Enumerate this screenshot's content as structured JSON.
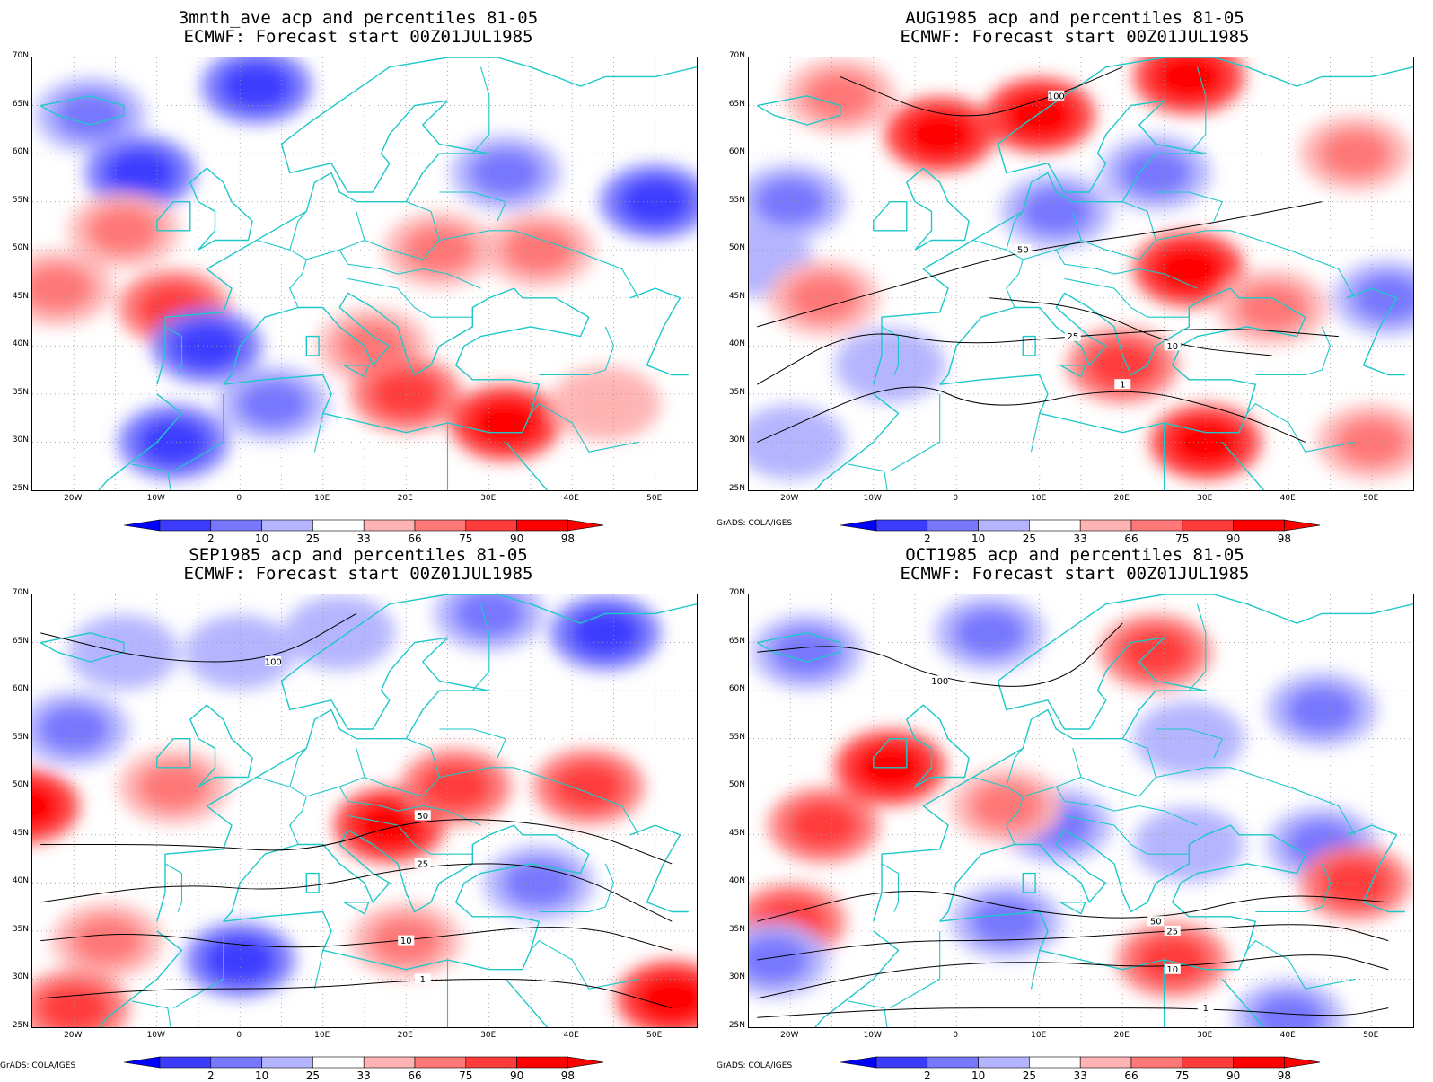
{
  "panels": [
    {
      "title_line1": "3mnth_ave acp and percentiles 81-05",
      "title_line2": "ECMWF: Forecast start 00Z01JUL1985",
      "credit": "",
      "blobs": [
        {
          "lon": -18,
          "lat": 64,
          "cls": 2
        },
        {
          "lon": 2,
          "lat": 67,
          "cls": 1
        },
        {
          "lon": -12,
          "lat": 58,
          "cls": 1
        },
        {
          "lon": 32,
          "lat": 58,
          "cls": 2
        },
        {
          "lon": -14,
          "lat": 52,
          "cls": 6
        },
        {
          "lon": -22,
          "lat": 46,
          "cls": 6
        },
        {
          "lon": -8,
          "lat": 44,
          "cls": 7
        },
        {
          "lon": 24,
          "lat": 50,
          "cls": 6
        },
        {
          "lon": 36,
          "lat": 50,
          "cls": 6
        },
        {
          "lon": -4,
          "lat": 40,
          "cls": 1
        },
        {
          "lon": 4,
          "lat": 34,
          "cls": 2
        },
        {
          "lon": 16,
          "lat": 40,
          "cls": 6
        },
        {
          "lon": 20,
          "lat": 35,
          "cls": 7
        },
        {
          "lon": 32,
          "lat": 32,
          "cls": 8
        },
        {
          "lon": 50,
          "lat": 55,
          "cls": 1
        },
        {
          "lon": -8,
          "lat": 30,
          "cls": 1
        },
        {
          "lon": 44,
          "lat": 34,
          "cls": 5
        }
      ],
      "contours": [],
      "tick_x": [
        "20W",
        "10W",
        "0",
        "10E",
        "20E",
        "30E",
        "40E",
        "50E"
      ],
      "tick_y": [
        "70N",
        "65N",
        "60N",
        "55N",
        "50N",
        "45N",
        "40N",
        "35N",
        "30N",
        "25N"
      ]
    },
    {
      "title_line1": "AUG1985 acp and percentiles 81-05",
      "title_line2": "ECMWF: Forecast start 00Z01JUL1985",
      "credit": "GrADS: COLA/IGES",
      "blobs": [
        {
          "lon": -14,
          "lat": 66,
          "cls": 6
        },
        {
          "lon": -2,
          "lat": 62,
          "cls": 8
        },
        {
          "lon": 10,
          "lat": 64,
          "cls": 8
        },
        {
          "lon": 28,
          "lat": 68,
          "cls": 8
        },
        {
          "lon": 24,
          "lat": 58,
          "cls": 2
        },
        {
          "lon": 12,
          "lat": 54,
          "cls": 2
        },
        {
          "lon": -20,
          "lat": 55,
          "cls": 2
        },
        {
          "lon": -24,
          "lat": 49,
          "cls": 3
        },
        {
          "lon": -8,
          "lat": 38,
          "cls": 3
        },
        {
          "lon": 28,
          "lat": 48,
          "cls": 8
        },
        {
          "lon": 20,
          "lat": 38,
          "cls": 7
        },
        {
          "lon": 30,
          "lat": 30,
          "cls": 8
        },
        {
          "lon": 38,
          "lat": 44,
          "cls": 6
        },
        {
          "lon": 48,
          "lat": 60,
          "cls": 6
        },
        {
          "lon": -20,
          "lat": 30,
          "cls": 3
        },
        {
          "lon": 50,
          "lat": 30,
          "cls": 6
        },
        {
          "lon": -16,
          "lat": 45,
          "cls": 6
        },
        {
          "lon": 52,
          "lat": 45,
          "cls": 2
        }
      ],
      "contours": [
        {
          "label": "100",
          "pts": [
            [
              -14,
              68
            ],
            [
              0,
              63
            ],
            [
              12,
              66
            ],
            [
              20,
              69
            ]
          ]
        },
        {
          "label": "50",
          "pts": [
            [
              -24,
              42
            ],
            [
              -8,
              46
            ],
            [
              8,
              50
            ],
            [
              26,
              52
            ],
            [
              44,
              55
            ]
          ]
        },
        {
          "label": "25",
          "pts": [
            [
              -24,
              36
            ],
            [
              -12,
              42
            ],
            [
              0,
              40
            ],
            [
              14,
              41
            ],
            [
              32,
              42
            ],
            [
              46,
              41
            ]
          ]
        },
        {
          "label": "10",
          "pts": [
            [
              4,
              45
            ],
            [
              16,
              44
            ],
            [
              26,
              40
            ],
            [
              38,
              39
            ]
          ]
        },
        {
          "label": "1",
          "pts": [
            [
              -24,
              30
            ],
            [
              -6,
              37
            ],
            [
              4,
              33
            ],
            [
              20,
              36
            ],
            [
              34,
              33
            ],
            [
              42,
              30
            ]
          ]
        }
      ],
      "tick_x": [
        "20W",
        "10W",
        "0",
        "10E",
        "20E",
        "30E",
        "40E",
        "50E"
      ],
      "tick_y": [
        "70N",
        "65N",
        "60N",
        "55N",
        "50N",
        "45N",
        "40N",
        "35N",
        "30N",
        "25N"
      ]
    },
    {
      "title_line1": "SEP1985 acp and percentiles 81-05",
      "title_line2": "ECMWF: Forecast start 00Z01JUL1985",
      "credit": "GrADS: COLA/IGES",
      "blobs": [
        {
          "lon": -14,
          "lat": 64,
          "cls": 3
        },
        {
          "lon": 0,
          "lat": 64,
          "cls": 3
        },
        {
          "lon": 12,
          "lat": 66,
          "cls": 3
        },
        {
          "lon": 30,
          "lat": 68,
          "cls": 2
        },
        {
          "lon": 44,
          "lat": 66,
          "cls": 1
        },
        {
          "lon": -20,
          "lat": 56,
          "cls": 2
        },
        {
          "lon": -26,
          "lat": 48,
          "cls": 8
        },
        {
          "lon": 18,
          "lat": 46,
          "cls": 8
        },
        {
          "lon": 26,
          "lat": 50,
          "cls": 7
        },
        {
          "lon": 42,
          "lat": 50,
          "cls": 7
        },
        {
          "lon": -8,
          "lat": 50,
          "cls": 6
        },
        {
          "lon": -16,
          "lat": 34,
          "cls": 6
        },
        {
          "lon": 20,
          "lat": 34,
          "cls": 6
        },
        {
          "lon": 52,
          "lat": 28,
          "cls": 8
        },
        {
          "lon": -20,
          "lat": 27,
          "cls": 7
        },
        {
          "lon": 0,
          "lat": 32,
          "cls": 1
        },
        {
          "lon": 36,
          "lat": 40,
          "cls": 2
        }
      ],
      "contours": [
        {
          "label": "100",
          "pts": [
            [
              -24,
              66
            ],
            [
              -10,
              63
            ],
            [
              4,
              63
            ],
            [
              14,
              68
            ]
          ]
        },
        {
          "label": "50",
          "pts": [
            [
              -24,
              44
            ],
            [
              -6,
              44
            ],
            [
              8,
              43
            ],
            [
              22,
              47
            ],
            [
              40,
              46
            ],
            [
              52,
              42
            ]
          ]
        },
        {
          "label": "25",
          "pts": [
            [
              -24,
              38
            ],
            [
              -8,
              40
            ],
            [
              6,
              39
            ],
            [
              22,
              42
            ],
            [
              38,
              42
            ],
            [
              52,
              36
            ]
          ]
        },
        {
          "label": "10",
          "pts": [
            [
              -24,
              34
            ],
            [
              -12,
              35
            ],
            [
              4,
              33
            ],
            [
              20,
              34
            ],
            [
              40,
              36
            ],
            [
              52,
              33
            ]
          ]
        },
        {
          "label": "1",
          "pts": [
            [
              -24,
              28
            ],
            [
              -10,
              29
            ],
            [
              8,
              29
            ],
            [
              22,
              30
            ],
            [
              40,
              30
            ],
            [
              52,
              27
            ]
          ]
        }
      ],
      "tick_x": [
        "20W",
        "10W",
        "0",
        "10E",
        "20E",
        "30E",
        "40E",
        "50E"
      ],
      "tick_y": [
        "70N",
        "65N",
        "60N",
        "55N",
        "50N",
        "45N",
        "40N",
        "35N",
        "30N",
        "25N"
      ]
    },
    {
      "title_line1": "OCT1985 acp and percentiles 81-05",
      "title_line2": "ECMWF: Forecast start 00Z01JUL1985",
      "credit": "GrADS: COLA/IGES",
      "blobs": [
        {
          "lon": -18,
          "lat": 64,
          "cls": 2
        },
        {
          "lon": 4,
          "lat": 66,
          "cls": 2
        },
        {
          "lon": 24,
          "lat": 64,
          "cls": 7
        },
        {
          "lon": 44,
          "lat": 58,
          "cls": 2
        },
        {
          "lon": 28,
          "lat": 55,
          "cls": 3
        },
        {
          "lon": -16,
          "lat": 46,
          "cls": 7
        },
        {
          "lon": -8,
          "lat": 52,
          "cls": 8
        },
        {
          "lon": -20,
          "lat": 36,
          "cls": 7
        },
        {
          "lon": 12,
          "lat": 46,
          "cls": 2
        },
        {
          "lon": 28,
          "lat": 44,
          "cls": 3
        },
        {
          "lon": 44,
          "lat": 44,
          "cls": 2
        },
        {
          "lon": 6,
          "lat": 36,
          "cls": 2
        },
        {
          "lon": 26,
          "lat": 32,
          "cls": 7
        },
        {
          "lon": 48,
          "lat": 40,
          "cls": 7
        },
        {
          "lon": 6,
          "lat": 48,
          "cls": 6
        },
        {
          "lon": 40,
          "lat": 26,
          "cls": 2
        },
        {
          "lon": -22,
          "lat": 32,
          "cls": 2
        }
      ],
      "contours": [
        {
          "label": "100",
          "pts": [
            [
              -24,
              64
            ],
            [
              -12,
              65
            ],
            [
              -2,
              61
            ],
            [
              12,
              60
            ],
            [
              20,
              67
            ]
          ]
        },
        {
          "label": "50",
          "pts": [
            [
              -24,
              36
            ],
            [
              -6,
              40
            ],
            [
              8,
              37
            ],
            [
              24,
              36
            ],
            [
              38,
              39
            ],
            [
              52,
              38
            ]
          ]
        },
        {
          "label": "25",
          "pts": [
            [
              -24,
              32
            ],
            [
              -8,
              34
            ],
            [
              8,
              34
            ],
            [
              26,
              35
            ],
            [
              44,
              36
            ],
            [
              52,
              34
            ]
          ]
        },
        {
          "label": "10",
          "pts": [
            [
              -24,
              28
            ],
            [
              -8,
              31
            ],
            [
              8,
              32
            ],
            [
              26,
              31
            ],
            [
              44,
              33
            ],
            [
              52,
              31
            ]
          ]
        },
        {
          "label": "1",
          "pts": [
            [
              -24,
              26
            ],
            [
              -6,
              27
            ],
            [
              12,
              27
            ],
            [
              30,
              27
            ],
            [
              46,
              26
            ],
            [
              52,
              27
            ]
          ]
        }
      ],
      "tick_x": [
        "20W",
        "10W",
        "0",
        "10E",
        "20E",
        "30E",
        "40E",
        "50E"
      ],
      "tick_y": [
        "70N",
        "65N",
        "60N",
        "55N",
        "50N",
        "45N",
        "40N",
        "35N",
        "30N",
        "25N"
      ]
    }
  ],
  "colorbar": {
    "labels": [
      "2",
      "10",
      "25",
      "33",
      "66",
      "75",
      "90",
      "98"
    ],
    "colors": [
      "#0000ff",
      "#3c3cff",
      "#7878ff",
      "#b4b4ff",
      "#ffffff",
      "#ffb4b4",
      "#ff7878",
      "#ff3c3c",
      "#ff0000"
    ],
    "edge_low": "#0000ff",
    "edge_high": "#ff0000"
  },
  "map_colors": {
    "coast": "#1ec8c8",
    "contour": "#000000",
    "grid": "#999999"
  }
}
